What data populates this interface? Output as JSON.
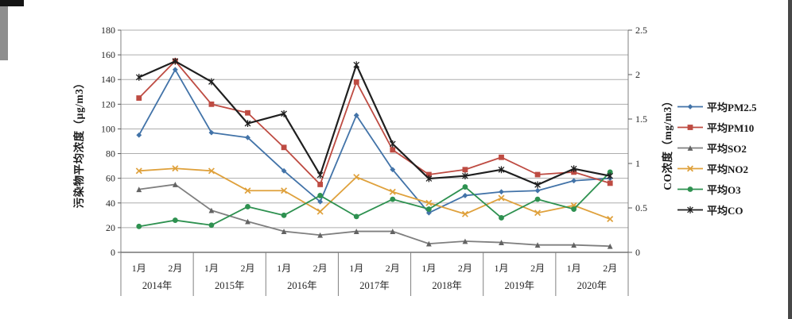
{
  "page": {
    "background": "#ffffff"
  },
  "chart_data": {
    "type": "line",
    "title": "",
    "grid": true,
    "legend_position": "right",
    "categories": [
      "2014年1月",
      "2014年2月",
      "2015年1月",
      "2015年2月",
      "2016年1月",
      "2016年2月",
      "2017年1月",
      "2017年2月",
      "2018年1月",
      "2018年2月",
      "2019年1月",
      "2019年2月",
      "2020年1月",
      "2020年2月"
    ],
    "x_axis": {
      "month_labels": [
        "1月",
        "2月"
      ],
      "year_labels": [
        "2014年",
        "2015年",
        "2016年",
        "2017年",
        "2018年",
        "2019年",
        "2020年"
      ]
    },
    "y_left": {
      "label": "污染物平均浓度（μg/m3）",
      "min": 0,
      "max": 180,
      "step": 20,
      "tick_labels": [
        "0",
        "20",
        "40",
        "60",
        "80",
        "100",
        "120",
        "140",
        "160",
        "180"
      ]
    },
    "y_right": {
      "label": "CO浓度（mg/m3）",
      "min": 0,
      "max": 2.5,
      "step": 0.5,
      "tick_labels": [
        "0",
        "0.5",
        "1",
        "1.5",
        "2",
        "2.5"
      ]
    },
    "series": [
      {
        "id": "pm25",
        "name": "平均PM2.5",
        "color": "#4273A8",
        "marker": "diamond",
        "axis": "left",
        "values": [
          95,
          148,
          97,
          93,
          66,
          41,
          111,
          67,
          32,
          46,
          49,
          50,
          58,
          60
        ]
      },
      {
        "id": "pm10",
        "name": "平均PM10",
        "color": "#BE4B42",
        "marker": "square",
        "axis": "left",
        "values": [
          125,
          155,
          120,
          113,
          85,
          55,
          138,
          83,
          63,
          67,
          77,
          63,
          65,
          56
        ]
      },
      {
        "id": "so2",
        "name": "平均SO2",
        "color": "#7F7F7F",
        "marker": "triangle",
        "axis": "left",
        "values": [
          51,
          55,
          34,
          25,
          17,
          14,
          17,
          17,
          7,
          9,
          8,
          6,
          6,
          5
        ]
      },
      {
        "id": "no2",
        "name": "平均NO2",
        "color": "#DFA13C",
        "marker": "x",
        "axis": "left",
        "values": [
          66,
          68,
          66,
          50,
          50,
          33,
          61,
          49,
          40,
          31,
          44,
          32,
          38,
          27
        ]
      },
      {
        "id": "o3",
        "name": "平均O3",
        "color": "#2E9150",
        "marker": "circle",
        "axis": "left",
        "values": [
          21,
          26,
          22,
          37,
          30,
          46,
          29,
          43,
          35,
          53,
          28,
          43,
          35,
          65
        ]
      },
      {
        "id": "co",
        "name": "平均CO",
        "color": "#1F1F1F",
        "marker": "star",
        "axis": "right",
        "values": [
          1.97,
          2.15,
          1.92,
          1.45,
          1.56,
          0.87,
          2.11,
          1.22,
          0.83,
          0.86,
          0.93,
          0.76,
          0.94,
          0.86
        ]
      }
    ]
  }
}
